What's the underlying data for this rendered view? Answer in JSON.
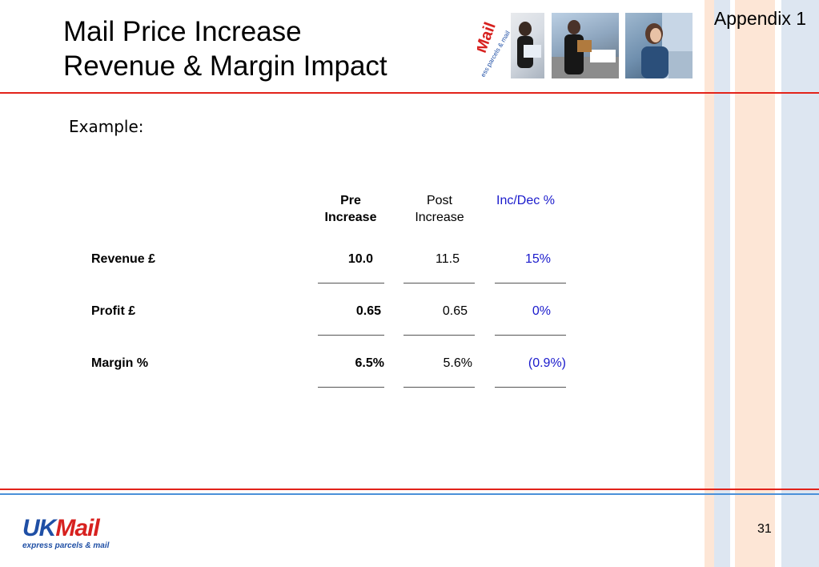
{
  "header": {
    "title_line1": "Mail Price Increase",
    "title_line2": "Revenue & Margin Impact",
    "appendix": "Appendix 1"
  },
  "photos": [
    {
      "label": "Mail",
      "sub": "ess parcels & mail"
    },
    {
      "label": "",
      "sub": ""
    },
    {
      "label": "",
      "sub": ""
    }
  ],
  "example_label": "Example:",
  "table": {
    "columns": [
      {
        "line1": "Pre",
        "line2": "Increase"
      },
      {
        "line1": "Post",
        "line2": "Increase"
      },
      {
        "line1": "Inc/Dec %",
        "line2": ""
      }
    ],
    "rows": [
      {
        "label": "Revenue £",
        "pre": "10.0",
        "post": "11.5",
        "change": "15%"
      },
      {
        "label": "Profit £",
        "pre": "0.65",
        "post": "0.65",
        "change": "0%"
      },
      {
        "label": "Margin %",
        "pre": "6.5%",
        "post": "5.6%",
        "change": "(0.9%)"
      }
    ]
  },
  "footer": {
    "page_number": "31",
    "logo_uk": "UK",
    "logo_mail": "Mail",
    "logo_tagline": "express parcels & mail"
  },
  "colors": {
    "accent_red": "#e2231a",
    "accent_blue": "#4a90d9",
    "change_text": "#1a1acc"
  }
}
